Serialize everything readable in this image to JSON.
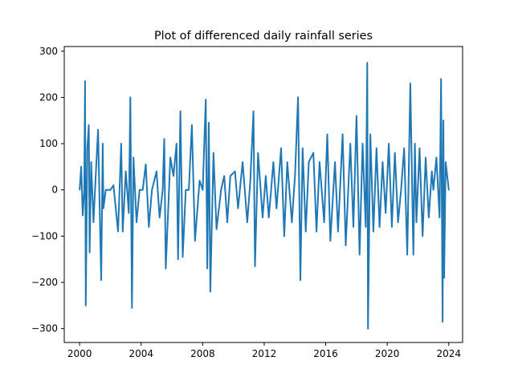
{
  "chart_data": {
    "type": "line",
    "title": "Plot of differenced daily rainfall series",
    "xlabel": "",
    "ylabel": "",
    "xlim": [
      1999.0,
      2024.9
    ],
    "ylim": [
      -330,
      310
    ],
    "x_ticks": [
      2000,
      2004,
      2008,
      2012,
      2016,
      2020,
      2024
    ],
    "y_ticks": [
      300,
      200,
      100,
      0,
      -100,
      -200,
      -300
    ],
    "grid": false,
    "legend": "none",
    "series": [
      {
        "color": "#1f77b4",
        "x": [
          2000.0,
          2000.1,
          2000.2,
          2000.3,
          2000.35,
          2000.4,
          2000.5,
          2000.6,
          2000.65,
          2000.75,
          2000.9,
          2001.0,
          2001.2,
          2001.4,
          2001.5,
          2001.55,
          2001.7,
          2002.0,
          2002.2,
          2002.5,
          2002.7,
          2002.8,
          2003.0,
          2003.2,
          2003.3,
          2003.4,
          2003.5,
          2003.7,
          2003.9,
          2004.1,
          2004.3,
          2004.5,
          2004.7,
          2005.0,
          2005.2,
          2005.4,
          2005.5,
          2005.6,
          2005.9,
          2006.1,
          2006.3,
          2006.4,
          2006.55,
          2006.7,
          2006.9,
          2007.1,
          2007.3,
          2007.5,
          2007.8,
          2008.0,
          2008.2,
          2008.3,
          2008.4,
          2008.5,
          2008.7,
          2008.9,
          2009.2,
          2009.4,
          2009.6,
          2009.8,
          2010.1,
          2010.3,
          2010.6,
          2010.9,
          2011.1,
          2011.3,
          2011.4,
          2011.6,
          2011.9,
          2012.1,
          2012.3,
          2012.6,
          2012.8,
          2013.1,
          2013.3,
          2013.5,
          2013.8,
          2014.0,
          2014.2,
          2014.35,
          2014.5,
          2014.7,
          2014.9,
          2015.2,
          2015.4,
          2015.6,
          2015.9,
          2016.1,
          2016.3,
          2016.6,
          2016.8,
          2017.1,
          2017.3,
          2017.6,
          2017.8,
          2018.0,
          2018.2,
          2018.4,
          2018.6,
          2018.7,
          2018.75,
          2018.9,
          2019.1,
          2019.3,
          2019.5,
          2019.7,
          2019.9,
          2020.1,
          2020.3,
          2020.5,
          2020.7,
          2020.9,
          2021.1,
          2021.3,
          2021.5,
          2021.7,
          2021.8,
          2021.9,
          2022.1,
          2022.3,
          2022.5,
          2022.7,
          2022.9,
          2023.0,
          2023.2,
          2023.4,
          2023.5,
          2023.6,
          2023.65,
          2023.7,
          2023.8,
          2024.0
        ],
        "y": [
          0,
          50,
          -55,
          0,
          235,
          -250,
          90,
          140,
          -135,
          60,
          -70,
          0,
          130,
          -195,
          100,
          -40,
          0,
          0,
          10,
          -90,
          100,
          -90,
          40,
          -50,
          200,
          -255,
          70,
          -70,
          0,
          0,
          55,
          -80,
          0,
          40,
          -60,
          0,
          110,
          -170,
          70,
          30,
          100,
          -150,
          170,
          -145,
          0,
          0,
          140,
          -110,
          20,
          0,
          195,
          -170,
          145,
          -220,
          80,
          -85,
          0,
          30,
          -70,
          30,
          40,
          -40,
          60,
          -70,
          20,
          170,
          -165,
          80,
          -60,
          30,
          -60,
          60,
          -40,
          90,
          -100,
          60,
          -70,
          30,
          200,
          -195,
          90,
          -90,
          60,
          80,
          -90,
          60,
          -70,
          120,
          -110,
          60,
          -90,
          120,
          -120,
          100,
          -80,
          160,
          -140,
          100,
          -80,
          275,
          -300,
          120,
          -90,
          90,
          -80,
          60,
          -50,
          100,
          -80,
          80,
          -70,
          0,
          90,
          -140,
          230,
          -140,
          100,
          -70,
          90,
          -100,
          70,
          -60,
          40,
          0,
          70,
          -60,
          240,
          -285,
          150,
          -190,
          60,
          0
        ]
      }
    ]
  }
}
